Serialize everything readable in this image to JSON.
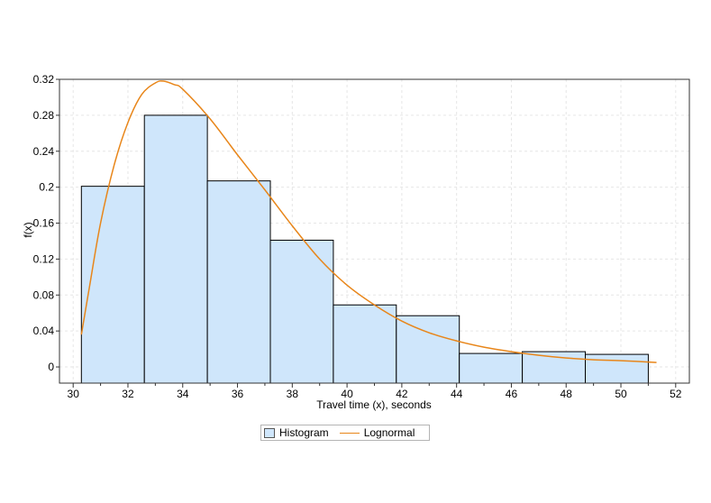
{
  "chart_data": {
    "type": "bar",
    "title": "",
    "xlabel": "Travel time (x), seconds",
    "ylabel": "f(x)",
    "xlim": [
      29.5,
      52.5
    ],
    "ylim": [
      -0.018,
      0.32
    ],
    "x_ticks": [
      30,
      32,
      34,
      36,
      38,
      40,
      42,
      44,
      46,
      48,
      50,
      52
    ],
    "y_ticks": [
      0,
      0.04,
      0.08,
      0.12,
      0.16,
      0.2,
      0.24,
      0.28,
      0.32
    ],
    "grid": true,
    "legend_position": "bottom",
    "histogram": {
      "name": "Histogram",
      "color": "#cfe6fb",
      "edge_color": "#000000",
      "bins": [
        {
          "x0": 30.3,
          "x1": 32.6,
          "value": 0.201
        },
        {
          "x0": 32.6,
          "x1": 34.9,
          "value": 0.28
        },
        {
          "x0": 34.9,
          "x1": 37.2,
          "value": 0.207
        },
        {
          "x0": 37.2,
          "x1": 39.5,
          "value": 0.141
        },
        {
          "x0": 39.5,
          "x1": 41.8,
          "value": 0.069
        },
        {
          "x0": 41.8,
          "x1": 44.1,
          "value": 0.057
        },
        {
          "x0": 44.1,
          "x1": 46.4,
          "value": 0.015
        },
        {
          "x0": 46.4,
          "x1": 48.7,
          "value": 0.017
        },
        {
          "x0": 48.7,
          "x1": 51.0,
          "value": 0.014
        }
      ]
    },
    "curve": {
      "name": "Lognormal",
      "color": "#e8861a",
      "points": [
        [
          30.3,
          0.036
        ],
        [
          30.6,
          0.09
        ],
        [
          31.0,
          0.16
        ],
        [
          31.5,
          0.225
        ],
        [
          32.0,
          0.272
        ],
        [
          32.5,
          0.303
        ],
        [
          33.0,
          0.316
        ],
        [
          33.3,
          0.318
        ],
        [
          33.7,
          0.314
        ],
        [
          34.0,
          0.309
        ],
        [
          35.0,
          0.276
        ],
        [
          36.0,
          0.236
        ],
        [
          37.0,
          0.197
        ],
        [
          38.0,
          0.157
        ],
        [
          39.0,
          0.12
        ],
        [
          40.0,
          0.091
        ],
        [
          41.0,
          0.069
        ],
        [
          42.0,
          0.051
        ],
        [
          43.0,
          0.038
        ],
        [
          44.0,
          0.029
        ],
        [
          45.0,
          0.022
        ],
        [
          46.0,
          0.017
        ],
        [
          47.0,
          0.013
        ],
        [
          48.0,
          0.01
        ],
        [
          49.0,
          0.008
        ],
        [
          50.0,
          0.007
        ],
        [
          51.3,
          0.005
        ]
      ]
    }
  },
  "legend": {
    "histogram_label": "Histogram",
    "lognormal_label": "Lognormal"
  }
}
